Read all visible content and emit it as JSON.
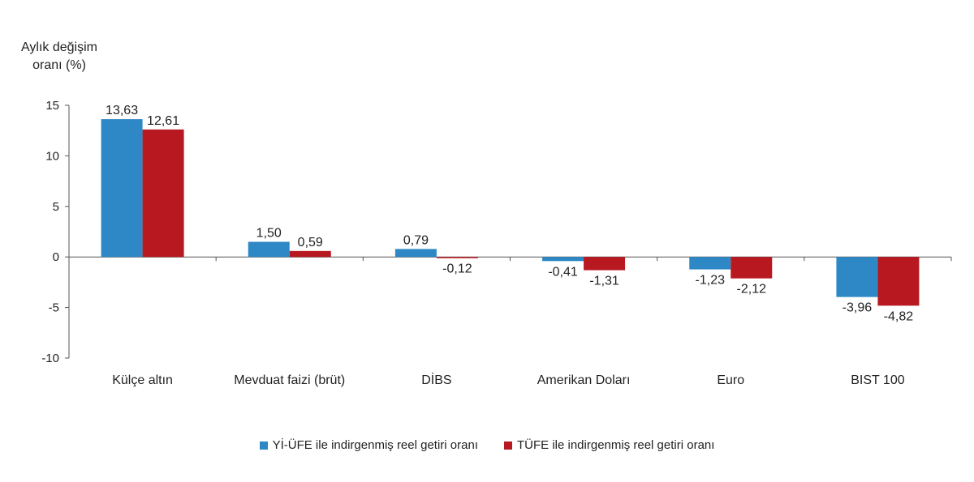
{
  "chart_data": {
    "type": "bar",
    "ylabel": "Aylık değişim\noranı (%)",
    "categories": [
      "Külçe altın",
      "Mevduat faizi (brüt)",
      "DİBS",
      "Amerikan Doları",
      "Euro",
      "BIST 100"
    ],
    "series": [
      {
        "name": "Yİ-ÜFE ile indirgenmiş reel getiri oranı",
        "color": "#2E88C6",
        "values": [
          13.63,
          1.5,
          0.79,
          -0.41,
          -1.23,
          -3.96
        ],
        "labels": [
          "13,63",
          "1,50",
          "0,79",
          "-0,41",
          "-1,23",
          "-3,96"
        ]
      },
      {
        "name": "TÜFE ile indirgenmiş reel getiri oranı",
        "color": "#B81921",
        "values": [
          12.61,
          0.59,
          -0.12,
          -1.31,
          -2.12,
          -4.82
        ],
        "labels": [
          "12,61",
          "0,59",
          "-0,12",
          "-1,31",
          "-2,12",
          "-4,82"
        ]
      }
    ],
    "ylim": [
      -10,
      15
    ],
    "yticks": [
      15,
      10,
      5,
      0,
      -5,
      -10
    ],
    "legend_position": "bottom",
    "grid": false
  }
}
